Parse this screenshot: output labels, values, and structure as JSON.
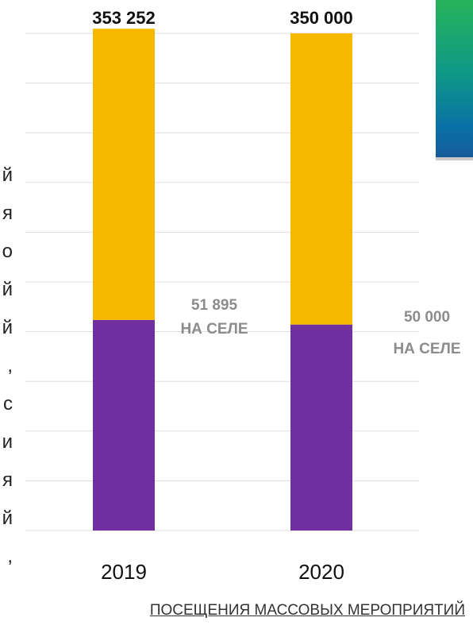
{
  "chart_data": {
    "type": "bar",
    "stacked": true,
    "categories": [
      "2019",
      "2020"
    ],
    "totals": [
      353252,
      350000
    ],
    "total_labels": [
      "353 252",
      "350 000"
    ],
    "series": [
      {
        "values": [
          205000,
          205000
        ],
        "color": "#f7b900"
      },
      {
        "values": [
          148252,
          145000
        ],
        "color": "#7030a0"
      }
    ],
    "rural_labels": [
      {
        "value": "51 895",
        "text": "НА СЕЛЕ"
      },
      {
        "value": "50 000",
        "text": "НА СЕЛЕ"
      }
    ],
    "ylim": [
      0,
      350000
    ],
    "grid": true,
    "caption": "ПОСЕЩЕНИЯ МАССОВЫХ МЕРОПРИЯТИЙ"
  },
  "edge_text": [
    "й",
    "я",
    "о",
    "й",
    "й",
    ",",
    "с",
    "и",
    "я",
    "й",
    ","
  ]
}
